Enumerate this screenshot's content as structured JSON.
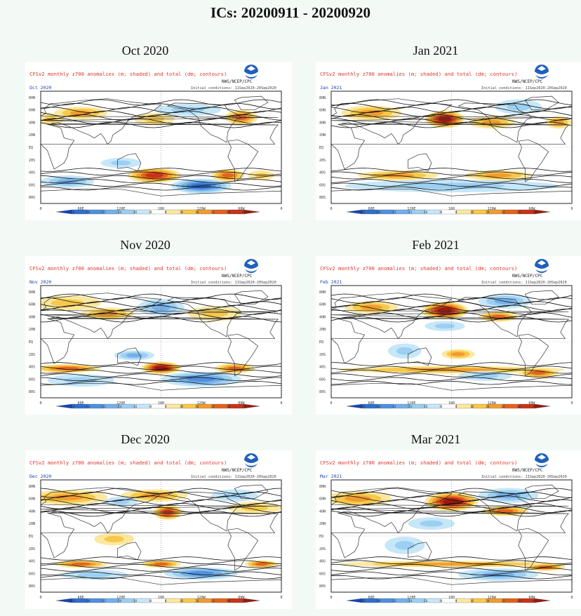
{
  "title": "ICs: 20200911 - 20200920",
  "panel_header": {
    "product": "CFSv2 monthly z700 anomalies (m; shaded) and total (dm; contours)",
    "agency": "NWS/NCEP/CPC",
    "initial_conditions": "Initial conditions: 11Sep2020-20Sep2020",
    "logo": "noaa-logo"
  },
  "lat_labels": [
    "80N",
    "60N",
    "40N",
    "20N",
    "EQ",
    "20S",
    "40S",
    "60S",
    "80S"
  ],
  "lon_labels": [
    "0",
    "60E",
    "120E",
    "180",
    "120W",
    "60W",
    "0"
  ],
  "colorbar": {
    "ticks": [
      "-48",
      "-40",
      "-32",
      "-24",
      "-16",
      "-8",
      "8",
      "16",
      "24",
      "32",
      "40",
      "48"
    ],
    "colors": [
      "#1046b8",
      "#2f6fd0",
      "#4f90de",
      "#74b0ea",
      "#9ccff2",
      "#c6e7f8",
      "#ffffff",
      "#fbe8a0",
      "#f8c84a",
      "#f29b30",
      "#e4621d",
      "#c83317",
      "#991a0c"
    ]
  },
  "panels": [
    {
      "label": "Oct 2020",
      "subtitle": "Oct 2020",
      "anomalies": [
        {
          "sign": "pos",
          "lon": 60,
          "lat": 55,
          "rlon": 40,
          "rlat": 10,
          "level": 2
        },
        {
          "sign": "pos",
          "lon": 170,
          "lat": 45,
          "rlon": 30,
          "rlat": 10,
          "level": 1
        },
        {
          "sign": "neg",
          "lon": 220,
          "lat": 60,
          "rlon": 50,
          "rlat": 10,
          "level": 1
        },
        {
          "sign": "pos",
          "lon": 300,
          "lat": 48,
          "rlon": 25,
          "rlat": 12,
          "level": 3
        },
        {
          "sign": "pos",
          "lon": 15,
          "lat": 45,
          "rlon": 20,
          "rlat": 10,
          "level": 1
        },
        {
          "sign": "neg",
          "lon": 120,
          "lat": -25,
          "rlon": 30,
          "rlat": 8,
          "level": 1
        },
        {
          "sign": "pos",
          "lon": 170,
          "lat": -45,
          "rlon": 40,
          "rlat": 12,
          "level": 4
        },
        {
          "sign": "neg",
          "lon": 240,
          "lat": -62,
          "rlon": 45,
          "rlat": 12,
          "level": 4
        },
        {
          "sign": "pos",
          "lon": 280,
          "lat": -45,
          "rlon": 25,
          "rlat": 10,
          "level": 3
        },
        {
          "sign": "neg",
          "lon": 40,
          "lat": -55,
          "rlon": 40,
          "rlat": 10,
          "level": 2
        },
        {
          "sign": "pos",
          "lon": 330,
          "lat": -45,
          "rlon": 20,
          "rlat": 8,
          "level": 1
        }
      ]
    },
    {
      "label": "Jan 2021",
      "subtitle": "Jan 2021",
      "anomalies": [
        {
          "sign": "pos",
          "lon": 60,
          "lat": 55,
          "rlon": 45,
          "rlat": 12,
          "level": 2
        },
        {
          "sign": "pos",
          "lon": 170,
          "lat": 45,
          "rlon": 30,
          "rlat": 14,
          "level": 5
        },
        {
          "sign": "pos",
          "lon": 240,
          "lat": 40,
          "rlon": 35,
          "rlat": 10,
          "level": 2
        },
        {
          "sign": "neg",
          "lon": 280,
          "lat": 65,
          "rlon": 35,
          "rlat": 12,
          "level": 1
        },
        {
          "sign": "pos",
          "lon": 340,
          "lat": 40,
          "rlon": 20,
          "rlat": 10,
          "level": 2
        },
        {
          "sign": "pos",
          "lon": 100,
          "lat": -45,
          "rlon": 60,
          "rlat": 8,
          "level": 2
        },
        {
          "sign": "pos",
          "lon": 250,
          "lat": -45,
          "rlon": 50,
          "rlat": 8,
          "level": 2
        },
        {
          "sign": "neg",
          "lon": 180,
          "lat": -62,
          "rlon": 160,
          "rlat": 10,
          "level": 1
        }
      ]
    },
    {
      "label": "Nov 2020",
      "subtitle": "Nov 2020",
      "anomalies": [
        {
          "sign": "pos",
          "lon": 40,
          "lat": 62,
          "rlon": 50,
          "rlat": 12,
          "level": 1
        },
        {
          "sign": "pos",
          "lon": 100,
          "lat": 45,
          "rlon": 40,
          "rlat": 10,
          "level": 2
        },
        {
          "sign": "neg",
          "lon": 180,
          "lat": 55,
          "rlon": 35,
          "rlat": 14,
          "level": 2
        },
        {
          "sign": "pos",
          "lon": 260,
          "lat": 45,
          "rlon": 40,
          "rlat": 12,
          "level": 1
        },
        {
          "sign": "neg",
          "lon": 140,
          "lat": -22,
          "rlon": 30,
          "rlat": 8,
          "level": 2
        },
        {
          "sign": "pos",
          "lon": 180,
          "lat": -42,
          "rlon": 30,
          "rlat": 10,
          "level": 5
        },
        {
          "sign": "pos",
          "lon": 40,
          "lat": -43,
          "rlon": 50,
          "rlat": 7,
          "level": 3
        },
        {
          "sign": "pos",
          "lon": 290,
          "lat": -43,
          "rlon": 30,
          "rlat": 8,
          "level": 3
        },
        {
          "sign": "neg",
          "lon": 240,
          "lat": -60,
          "rlon": 60,
          "rlat": 12,
          "level": 3
        },
        {
          "sign": "neg",
          "lon": 60,
          "lat": -62,
          "rlon": 50,
          "rlat": 10,
          "level": 1
        }
      ]
    },
    {
      "label": "Feb 2021",
      "subtitle": "Feb 2021",
      "anomalies": [
        {
          "sign": "pos",
          "lon": 60,
          "lat": 55,
          "rlon": 40,
          "rlat": 10,
          "level": 2
        },
        {
          "sign": "pos",
          "lon": 170,
          "lat": 50,
          "rlon": 35,
          "rlat": 14,
          "level": 5
        },
        {
          "sign": "neg",
          "lon": 260,
          "lat": 65,
          "rlon": 40,
          "rlat": 12,
          "level": 2
        },
        {
          "sign": "pos",
          "lon": 250,
          "lat": 40,
          "rlon": 30,
          "rlat": 8,
          "level": 3
        },
        {
          "sign": "neg",
          "lon": 170,
          "lat": 25,
          "rlon": 30,
          "rlat": 8,
          "level": 1
        },
        {
          "sign": "neg",
          "lon": 110,
          "lat": -15,
          "rlon": 25,
          "rlat": 12,
          "level": 1
        },
        {
          "sign": "pos",
          "lon": 190,
          "lat": -20,
          "rlon": 25,
          "rlat": 8,
          "level": 2
        },
        {
          "sign": "pos",
          "lon": 180,
          "lat": -45,
          "rlon": 170,
          "rlat": 6,
          "level": 2
        },
        {
          "sign": "pos",
          "lon": 310,
          "lat": -50,
          "rlon": 30,
          "rlat": 8,
          "level": 3
        },
        {
          "sign": "neg",
          "lon": 230,
          "lat": -55,
          "rlon": 40,
          "rlat": 8,
          "level": 1
        }
      ]
    },
    {
      "label": "Dec 2020",
      "subtitle": "Dec 2020",
      "anomalies": [
        {
          "sign": "pos",
          "lon": 40,
          "lat": 62,
          "rlon": 60,
          "rlat": 12,
          "level": 2
        },
        {
          "sign": "pos",
          "lon": 170,
          "lat": 65,
          "rlon": 50,
          "rlat": 10,
          "level": 2
        },
        {
          "sign": "pos",
          "lon": 190,
          "lat": 38,
          "rlon": 22,
          "rlat": 12,
          "level": 4
        },
        {
          "sign": "neg",
          "lon": 120,
          "lat": 55,
          "rlon": 25,
          "rlat": 8,
          "level": 1
        },
        {
          "sign": "neg",
          "lon": 290,
          "lat": 65,
          "rlon": 35,
          "rlat": 10,
          "level": 1
        },
        {
          "sign": "pos",
          "lon": 320,
          "lat": 45,
          "rlon": 40,
          "rlat": 10,
          "level": 1
        },
        {
          "sign": "pos",
          "lon": 110,
          "lat": -5,
          "rlon": 30,
          "rlat": 10,
          "level": 1
        },
        {
          "sign": "pos",
          "lon": 60,
          "lat": -45,
          "rlon": 40,
          "rlat": 6,
          "level": 3
        },
        {
          "sign": "pos",
          "lon": 180,
          "lat": -45,
          "rlon": 30,
          "rlat": 6,
          "level": 3
        },
        {
          "sign": "pos",
          "lon": 330,
          "lat": -45,
          "rlon": 25,
          "rlat": 6,
          "level": 3
        },
        {
          "sign": "neg",
          "lon": 240,
          "lat": -60,
          "rlon": 55,
          "rlat": 10,
          "level": 3
        },
        {
          "sign": "neg",
          "lon": 80,
          "lat": -62,
          "rlon": 50,
          "rlat": 8,
          "level": 1
        }
      ]
    },
    {
      "label": "Mar 2021",
      "subtitle": "Mar 2021",
      "anomalies": [
        {
          "sign": "pos",
          "lon": 40,
          "lat": 60,
          "rlon": 50,
          "rlat": 12,
          "level": 2
        },
        {
          "sign": "pos",
          "lon": 180,
          "lat": 55,
          "rlon": 40,
          "rlat": 15,
          "level": 5
        },
        {
          "sign": "neg",
          "lon": 265,
          "lat": 65,
          "rlon": 45,
          "rlat": 12,
          "level": 2
        },
        {
          "sign": "pos",
          "lon": 260,
          "lat": 40,
          "rlon": 35,
          "rlat": 8,
          "level": 3
        },
        {
          "sign": "neg",
          "lon": 150,
          "lat": 20,
          "rlon": 35,
          "rlat": 10,
          "level": 1
        },
        {
          "sign": "neg",
          "lon": 110,
          "lat": -15,
          "rlon": 30,
          "rlat": 14,
          "level": 1
        },
        {
          "sign": "pos",
          "lon": 180,
          "lat": -45,
          "rlon": 170,
          "rlat": 5,
          "level": 2
        },
        {
          "sign": "neg",
          "lon": 250,
          "lat": -62,
          "rlon": 60,
          "rlat": 10,
          "level": 2
        },
        {
          "sign": "pos",
          "lon": 320,
          "lat": -50,
          "rlon": 30,
          "rlat": 6,
          "level": 3
        }
      ]
    }
  ]
}
